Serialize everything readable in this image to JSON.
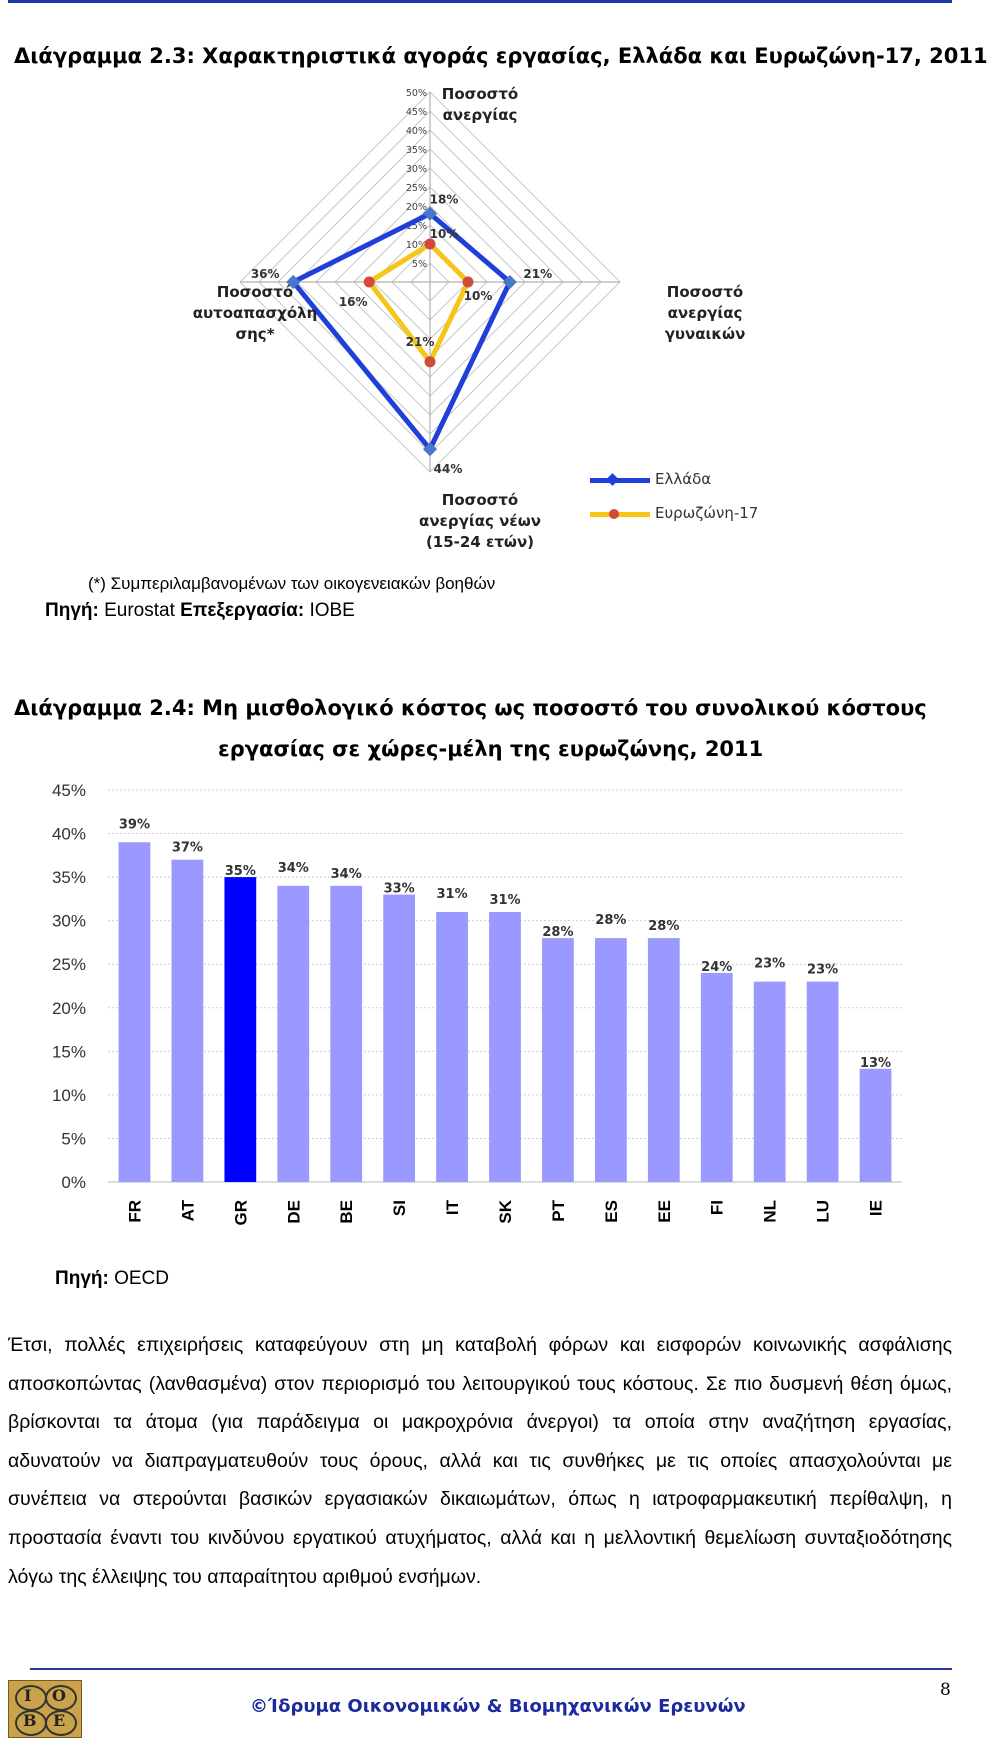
{
  "radar": {
    "title": "Διάγραμμα 2.3: Χαρακτηριστικά αγοράς εργασίας, Ελλάδα και Ευρωζώνη-17, 2011",
    "axes": [
      {
        "lines": [
          "Ποσοστό",
          "ανεργίας"
        ]
      },
      {
        "lines": [
          "Ποσοστό",
          "ανεργίας",
          "γυναικών"
        ]
      },
      {
        "lines": [
          "Ποσοστό",
          "ανεργίας νέων",
          "(15-24 ετών)"
        ]
      },
      {
        "lines": [
          "Ποσοστό",
          "αυτοαπασχόλη",
          "σης*"
        ]
      }
    ],
    "scale_ticks": [
      "5%",
      "10%",
      "15%",
      "20%",
      "25%",
      "30%",
      "35%",
      "40%",
      "45%",
      "50%"
    ],
    "series": [
      {
        "name": "Ελλάδα",
        "color": "#1f3fd8",
        "values": [
          18,
          21,
          44,
          36
        ],
        "labels": [
          "18%",
          "21%",
          "44%",
          "36%"
        ]
      },
      {
        "name": "Ευρωζώνη-17",
        "color": "#f5c518",
        "values": [
          10,
          10,
          21,
          16
        ],
        "labels": [
          "10%",
          "10%",
          "21%",
          "16%"
        ]
      }
    ],
    "note": "(*) Συμπεριλαμβανομένων των οικογενειακών βοηθών",
    "source_label": "Πηγή:",
    "source_value": "Eurostat",
    "processing_label": "Επεξεργασία:",
    "processing_value": "ΙΟΒΕ"
  },
  "bar": {
    "title_line1": "Διάγραμμα 2.4: Μη μισθολογικό κόστος ως ποσοστό του συνολικού κόστους",
    "title_line2": "εργασίας σε χώρες-μέλη της ευρωζώνης, 2011",
    "source_label": "Πηγή:",
    "source_value": "OECD"
  },
  "chart_data": [
    {
      "type": "radar",
      "title": "Διάγραμμα 2.3: Χαρακτηριστικά αγοράς εργασίας, Ελλάδα και Ευρωζώνη-17, 2011",
      "axes": [
        "Ποσοστό ανεργίας",
        "Ποσοστό ανεργίας γυναικών",
        "Ποσοστό ανεργίας νέων (15-24 ετών)",
        "Ποσοστό αυτοαπασχόλησης*"
      ],
      "series": [
        {
          "name": "Ελλάδα",
          "values": [
            18,
            21,
            44,
            36
          ]
        },
        {
          "name": "Ευρωζώνη-17",
          "values": [
            10,
            10,
            21,
            16
          ]
        }
      ],
      "rlim": [
        0,
        50
      ],
      "legend": "bottom-right"
    },
    {
      "type": "bar",
      "title": "Διάγραμμα 2.4: Μη μισθολογικό κόστος ως ποσοστό του συνολικού κόστους εργασίας σε χώρες-μέλη της ευρωζώνης, 2011",
      "categories": [
        "FR",
        "AT",
        "GR",
        "DE",
        "BE",
        "SI",
        "IT",
        "SK",
        "PT",
        "ES",
        "EE",
        "FI",
        "NL",
        "LU",
        "IE"
      ],
      "values": [
        39,
        37,
        35,
        34,
        34,
        33,
        31,
        31,
        28,
        28,
        28,
        24,
        23,
        23,
        13
      ],
      "labels": [
        "39%",
        "37%",
        "35%",
        "34%",
        "34%",
        "33%",
        "31%",
        "31%",
        "28%",
        "28%",
        "28%",
        "24%",
        "23%",
        "23%",
        "13%"
      ],
      "highlight": "GR",
      "bar_color": "#9999ff",
      "highlight_color": "#0000ff",
      "yticks": [
        "0%",
        "5%",
        "10%",
        "15%",
        "20%",
        "25%",
        "30%",
        "35%",
        "40%",
        "45%"
      ],
      "ylim": [
        0,
        45
      ],
      "grid": true
    }
  ],
  "paragraph": "Έτσι, πολλές επιχειρήσεις καταφεύγουν στη μη καταβολή φόρων και εισφορών κοινωνικής ασφάλισης αποσκοπώντας (λανθασμένα) στον περιορισμό του λειτουργικού τους κόστους. Σε πιο δυσμενή θέση όμως, βρίσκονται τα άτομα (για παράδειγμα οι μακροχρόνια άνεργοι) τα οποία στην αναζήτηση εργασίας, αδυνατούν να διαπραγματευθούν τους όρους, αλλά και τις συνθήκες με τις οποίες απασχολούνται με συνέπεια να στερούνται βασικών εργασιακών δικαιωμάτων, όπως η ιατροφαρμακευτική περίθαλψη, η προστασία έναντι του κινδύνου εργατικού ατυχήματος, αλλά και η μελλοντική θεμελίωση συνταξιοδότησης λόγω της έλλειψης του απαραίτητου αριθμού ενσήμων.",
  "footer": {
    "text": "©Ίδρυμα Οικονομικών & Βιομηχανικών Ερευνών",
    "page_number": "8",
    "logo_letters": [
      "Ι",
      "Ο",
      "Β",
      "Ε"
    ]
  }
}
